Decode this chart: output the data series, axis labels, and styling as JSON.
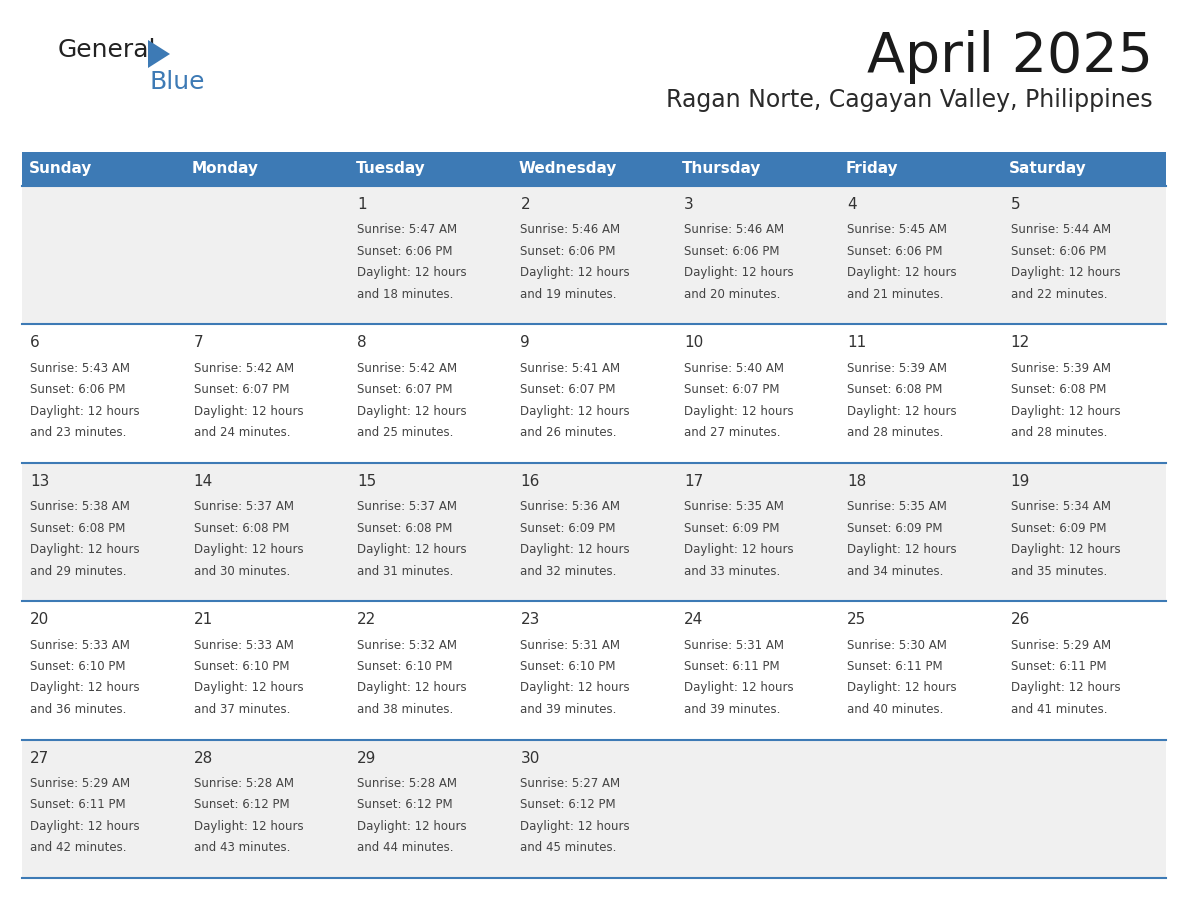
{
  "title": "April 2025",
  "subtitle": "Ragan Norte, Cagayan Valley, Philippines",
  "days_of_week": [
    "Sunday",
    "Monday",
    "Tuesday",
    "Wednesday",
    "Thursday",
    "Friday",
    "Saturday"
  ],
  "header_bg": "#3d7ab5",
  "header_text": "#ffffff",
  "row_bg_odd": "#f0f0f0",
  "row_bg_even": "#ffffff",
  "text_color": "#444444",
  "day_num_color": "#333333",
  "border_color": "#3d7ab5",
  "logo_color_general": "#222222",
  "logo_color_blue": "#3d7ab5",
  "triangle_color": "#3d7ab5",
  "calendar_data": [
    [
      null,
      null,
      {
        "day": 1,
        "sunrise": "5:47 AM",
        "sunset": "6:06 PM",
        "daylight_hrs": 12,
        "daylight_min": 18
      },
      {
        "day": 2,
        "sunrise": "5:46 AM",
        "sunset": "6:06 PM",
        "daylight_hrs": 12,
        "daylight_min": 19
      },
      {
        "day": 3,
        "sunrise": "5:46 AM",
        "sunset": "6:06 PM",
        "daylight_hrs": 12,
        "daylight_min": 20
      },
      {
        "day": 4,
        "sunrise": "5:45 AM",
        "sunset": "6:06 PM",
        "daylight_hrs": 12,
        "daylight_min": 21
      },
      {
        "day": 5,
        "sunrise": "5:44 AM",
        "sunset": "6:06 PM",
        "daylight_hrs": 12,
        "daylight_min": 22
      }
    ],
    [
      {
        "day": 6,
        "sunrise": "5:43 AM",
        "sunset": "6:06 PM",
        "daylight_hrs": 12,
        "daylight_min": 23
      },
      {
        "day": 7,
        "sunrise": "5:42 AM",
        "sunset": "6:07 PM",
        "daylight_hrs": 12,
        "daylight_min": 24
      },
      {
        "day": 8,
        "sunrise": "5:42 AM",
        "sunset": "6:07 PM",
        "daylight_hrs": 12,
        "daylight_min": 25
      },
      {
        "day": 9,
        "sunrise": "5:41 AM",
        "sunset": "6:07 PM",
        "daylight_hrs": 12,
        "daylight_min": 26
      },
      {
        "day": 10,
        "sunrise": "5:40 AM",
        "sunset": "6:07 PM",
        "daylight_hrs": 12,
        "daylight_min": 27
      },
      {
        "day": 11,
        "sunrise": "5:39 AM",
        "sunset": "6:08 PM",
        "daylight_hrs": 12,
        "daylight_min": 28
      },
      {
        "day": 12,
        "sunrise": "5:39 AM",
        "sunset": "6:08 PM",
        "daylight_hrs": 12,
        "daylight_min": 28
      }
    ],
    [
      {
        "day": 13,
        "sunrise": "5:38 AM",
        "sunset": "6:08 PM",
        "daylight_hrs": 12,
        "daylight_min": 29
      },
      {
        "day": 14,
        "sunrise": "5:37 AM",
        "sunset": "6:08 PM",
        "daylight_hrs": 12,
        "daylight_min": 30
      },
      {
        "day": 15,
        "sunrise": "5:37 AM",
        "sunset": "6:08 PM",
        "daylight_hrs": 12,
        "daylight_min": 31
      },
      {
        "day": 16,
        "sunrise": "5:36 AM",
        "sunset": "6:09 PM",
        "daylight_hrs": 12,
        "daylight_min": 32
      },
      {
        "day": 17,
        "sunrise": "5:35 AM",
        "sunset": "6:09 PM",
        "daylight_hrs": 12,
        "daylight_min": 33
      },
      {
        "day": 18,
        "sunrise": "5:35 AM",
        "sunset": "6:09 PM",
        "daylight_hrs": 12,
        "daylight_min": 34
      },
      {
        "day": 19,
        "sunrise": "5:34 AM",
        "sunset": "6:09 PM",
        "daylight_hrs": 12,
        "daylight_min": 35
      }
    ],
    [
      {
        "day": 20,
        "sunrise": "5:33 AM",
        "sunset": "6:10 PM",
        "daylight_hrs": 12,
        "daylight_min": 36
      },
      {
        "day": 21,
        "sunrise": "5:33 AM",
        "sunset": "6:10 PM",
        "daylight_hrs": 12,
        "daylight_min": 37
      },
      {
        "day": 22,
        "sunrise": "5:32 AM",
        "sunset": "6:10 PM",
        "daylight_hrs": 12,
        "daylight_min": 38
      },
      {
        "day": 23,
        "sunrise": "5:31 AM",
        "sunset": "6:10 PM",
        "daylight_hrs": 12,
        "daylight_min": 39
      },
      {
        "day": 24,
        "sunrise": "5:31 AM",
        "sunset": "6:11 PM",
        "daylight_hrs": 12,
        "daylight_min": 39
      },
      {
        "day": 25,
        "sunrise": "5:30 AM",
        "sunset": "6:11 PM",
        "daylight_hrs": 12,
        "daylight_min": 40
      },
      {
        "day": 26,
        "sunrise": "5:29 AM",
        "sunset": "6:11 PM",
        "daylight_hrs": 12,
        "daylight_min": 41
      }
    ],
    [
      {
        "day": 27,
        "sunrise": "5:29 AM",
        "sunset": "6:11 PM",
        "daylight_hrs": 12,
        "daylight_min": 42
      },
      {
        "day": 28,
        "sunrise": "5:28 AM",
        "sunset": "6:12 PM",
        "daylight_hrs": 12,
        "daylight_min": 43
      },
      {
        "day": 29,
        "sunrise": "5:28 AM",
        "sunset": "6:12 PM",
        "daylight_hrs": 12,
        "daylight_min": 44
      },
      {
        "day": 30,
        "sunrise": "5:27 AM",
        "sunset": "6:12 PM",
        "daylight_hrs": 12,
        "daylight_min": 45
      },
      null,
      null,
      null
    ]
  ]
}
